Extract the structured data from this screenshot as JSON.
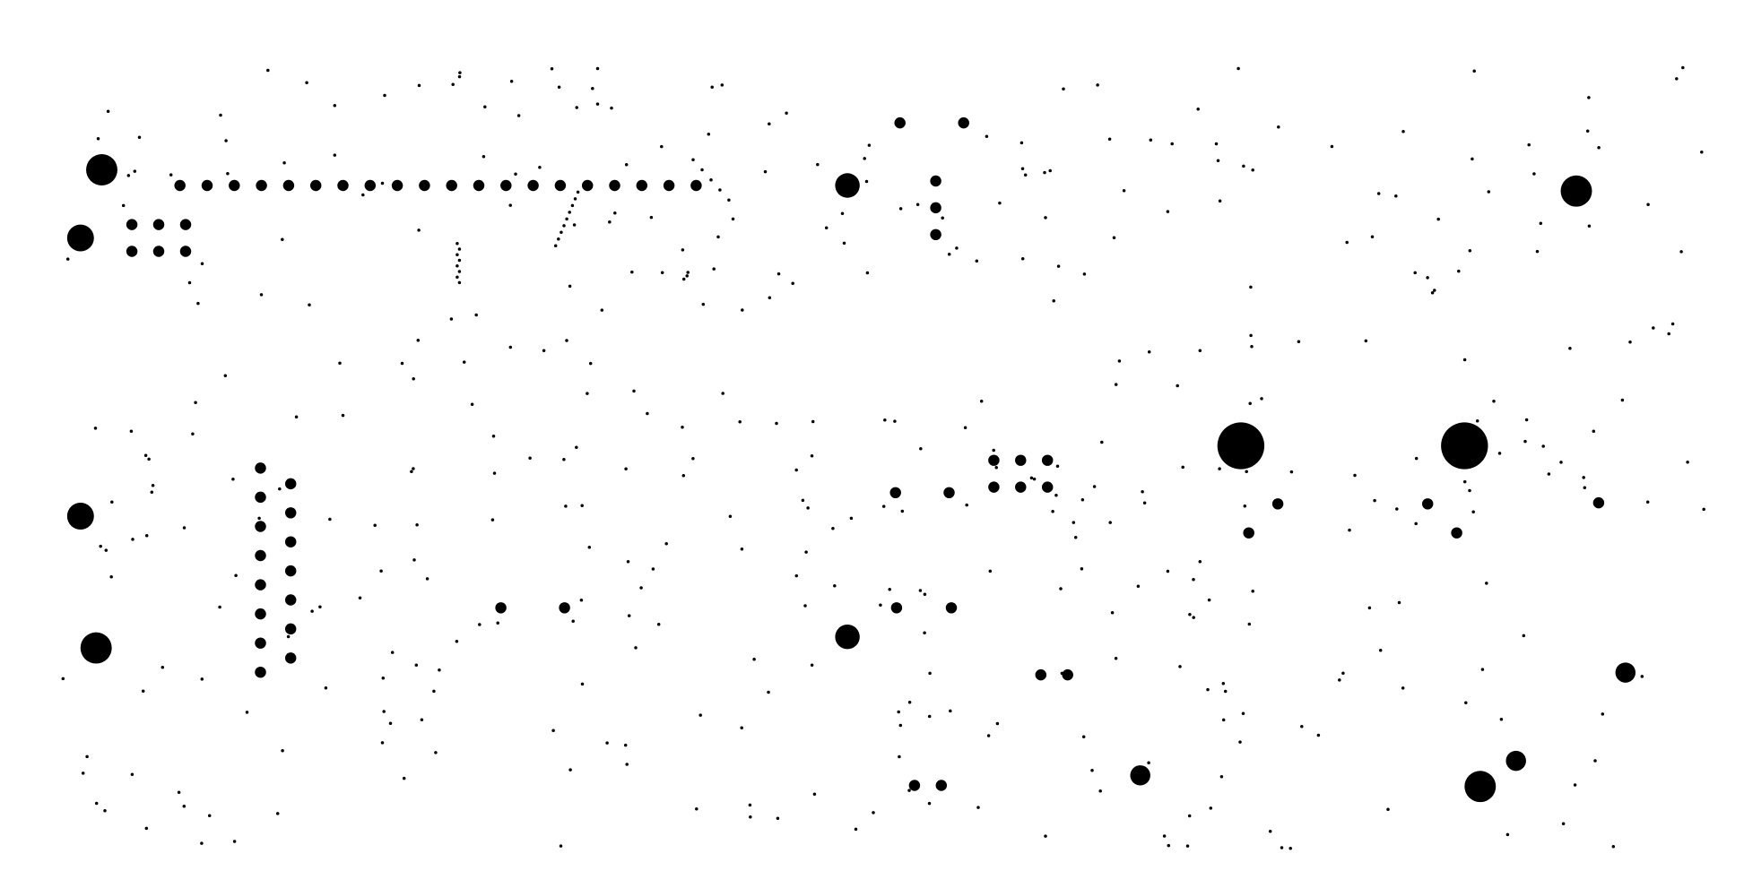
{
  "canvas": {
    "background": "#ffffff",
    "ink": "#000000"
  },
  "pattern": {
    "description_visible": "",
    "mark_count_note": ""
  }
}
